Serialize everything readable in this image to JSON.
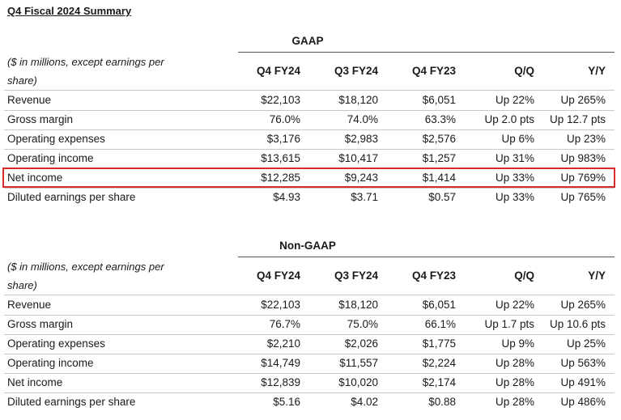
{
  "title": "Q4 Fiscal 2024 Summary",
  "units_note": "($ in millions, except earnings per share)",
  "columns": [
    "Q4 FY24",
    "Q3 FY24",
    "Q4 FY23",
    "Q/Q",
    "Y/Y"
  ],
  "gaap": {
    "heading": "GAAP",
    "rows": [
      {
        "label": "Revenue",
        "values": [
          "$22,103",
          "$18,120",
          "$6,051",
          "Up 22%",
          "Up 265%"
        ]
      },
      {
        "label": "Gross margin",
        "values": [
          "76.0%",
          "74.0%",
          "63.3%",
          "Up 2.0 pts",
          "Up 12.7 pts"
        ]
      },
      {
        "label": "Operating expenses",
        "values": [
          "$3,176",
          "$2,983",
          "$2,576",
          "Up 6%",
          "Up 23%"
        ]
      },
      {
        "label": "Operating income",
        "values": [
          "$13,615",
          "$10,417",
          "$1,257",
          "Up 31%",
          "Up 983%"
        ]
      },
      {
        "label": "Net income",
        "values": [
          "$12,285",
          "$9,243",
          "$1,414",
          "Up 33%",
          "Up 769%"
        ]
      },
      {
        "label": "Diluted earnings per share",
        "values": [
          "$4.93",
          "$3.71",
          "$0.57",
          "Up 33%",
          "Up 765%"
        ]
      }
    ]
  },
  "nongaap": {
    "heading": "Non-GAAP",
    "rows": [
      {
        "label": "Revenue",
        "values": [
          "$22,103",
          "$18,120",
          "$6,051",
          "Up 22%",
          "Up 265%"
        ]
      },
      {
        "label": "Gross margin",
        "values": [
          "76.7%",
          "75.0%",
          "66.1%",
          "Up 1.7 pts",
          "Up 10.6 pts"
        ]
      },
      {
        "label": "Operating expenses",
        "values": [
          "$2,210",
          "$2,026",
          "$1,775",
          "Up 9%",
          "Up 25%"
        ]
      },
      {
        "label": "Operating income",
        "values": [
          "$14,749",
          "$11,557",
          "$2,224",
          "Up 28%",
          "Up 563%"
        ]
      },
      {
        "label": "Net income",
        "values": [
          "$12,839",
          "$10,020",
          "$2,174",
          "Up 28%",
          "Up 491%"
        ]
      },
      {
        "label": "Diluted earnings per share",
        "values": [
          "$5.16",
          "$4.02",
          "$0.88",
          "Up 28%",
          "Up 486%"
        ]
      }
    ]
  },
  "highlight_color": "#d92b2b"
}
